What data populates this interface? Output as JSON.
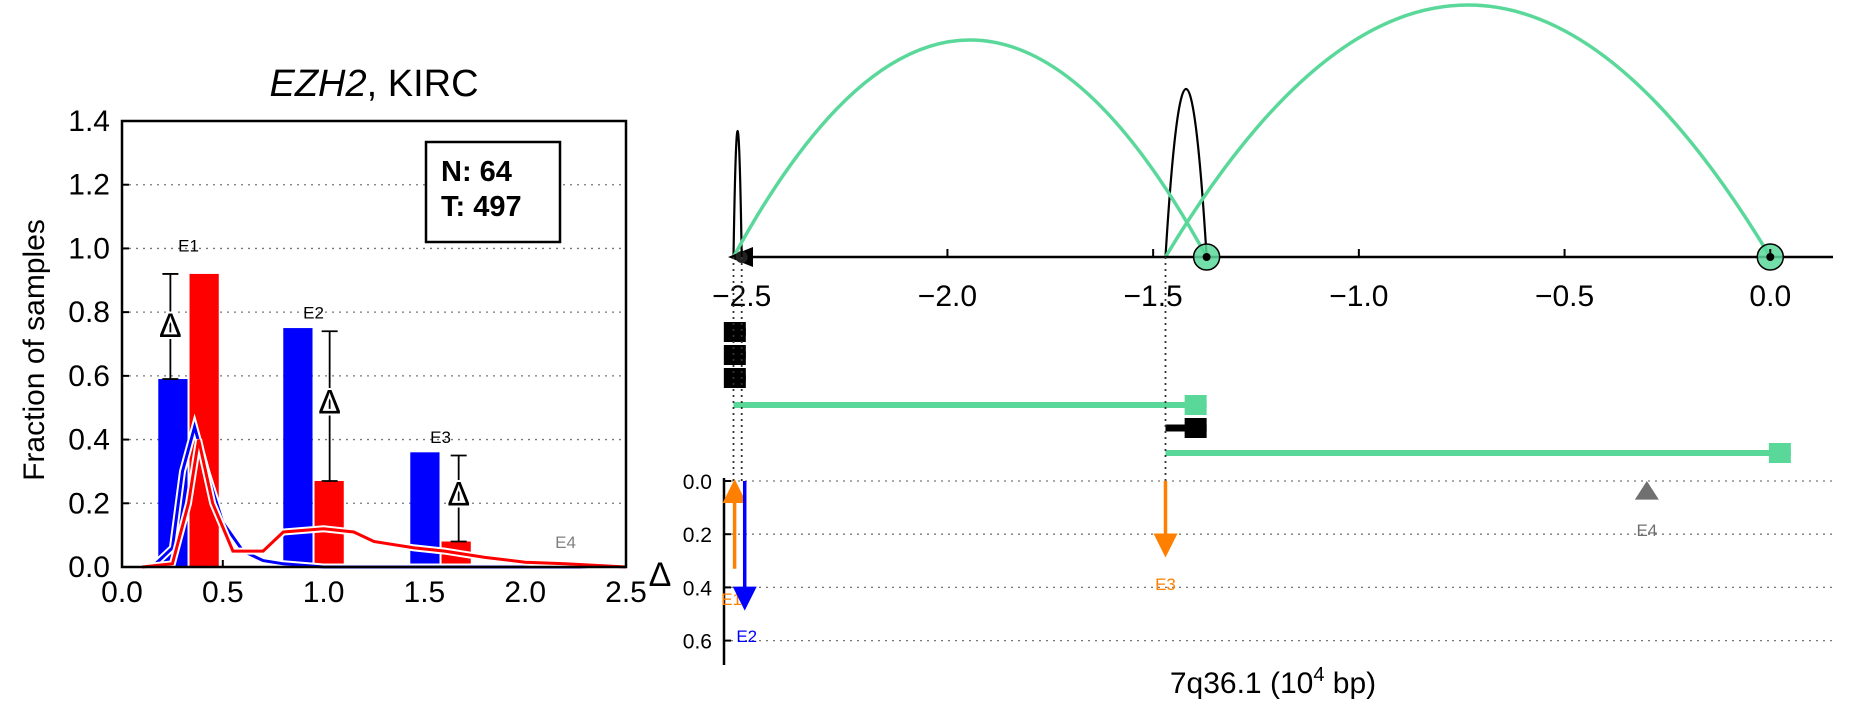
{
  "chart_data": [
    {
      "type": "bar",
      "title_gene": "EZH2",
      "title_rest": ", KIRC",
      "ylabel": "Fraction of samples",
      "xlim": [
        0,
        2.5
      ],
      "ylim": [
        0,
        1.4
      ],
      "xticks": [
        "0.0",
        "0.5",
        "1.0",
        "1.5",
        "2.0",
        "2.5"
      ],
      "yticks": [
        "0.0",
        "0.2",
        "0.4",
        "0.6",
        "0.8",
        "1.0",
        "1.2",
        "1.4"
      ],
      "legend": {
        "n": "N: 64",
        "t": "T: 497",
        "position": "top-right"
      },
      "delta_symbol": "Δ",
      "categories": [
        "E1",
        "E2",
        "E3",
        "E4"
      ],
      "series": [
        {
          "name": "N",
          "color": "#0000ff",
          "values": [
            0.59,
            0.75,
            0.36,
            0.0
          ]
        },
        {
          "name": "T",
          "color": "#ff0000",
          "values": [
            0.92,
            0.27,
            0.08,
            0.01
          ]
        }
      ],
      "delta": [
        {
          "label": "E1",
          "y": 0.76,
          "err": [
            0.59,
            0.92
          ]
        },
        {
          "label": "E2",
          "y": 0.52,
          "err": [
            0.27,
            0.74
          ]
        },
        {
          "label": "E3",
          "y": 0.23,
          "err": [
            0.08,
            0.35
          ]
        }
      ],
      "density_curves": [
        {
          "color": "#0000ff",
          "points": [
            [
              0.15,
              0
            ],
            [
              0.25,
              0.06
            ],
            [
              0.3,
              0.3
            ],
            [
              0.36,
              0.44
            ],
            [
              0.42,
              0.3
            ],
            [
              0.5,
              0.14
            ],
            [
              0.6,
              0.05
            ],
            [
              0.7,
              0.02
            ],
            [
              0.8,
              0.01
            ],
            [
              1.0,
              0.0
            ],
            [
              1.5,
              0.0
            ],
            [
              2.5,
              0.0
            ]
          ]
        },
        {
          "color": "#ff0000",
          "points": [
            [
              0.1,
              0
            ],
            [
              0.25,
              0.01
            ],
            [
              0.33,
              0.2
            ],
            [
              0.38,
              0.4
            ],
            [
              0.45,
              0.2
            ],
            [
              0.55,
              0.05
            ],
            [
              0.7,
              0.05
            ],
            [
              0.8,
              0.11
            ],
            [
              1.0,
              0.12
            ],
            [
              1.15,
              0.11
            ],
            [
              1.25,
              0.08
            ],
            [
              1.45,
              0.06
            ],
            [
              1.6,
              0.05
            ],
            [
              1.8,
              0.03
            ],
            [
              2.0,
              0.015
            ],
            [
              2.2,
              0.01
            ],
            [
              2.5,
              0.0
            ]
          ]
        }
      ]
    },
    {
      "type": "scatter",
      "xlabel": "7q36.1 (10",
      "xlabel_sup": "4",
      "xlabel_end": " bp)",
      "xlim": [
        -2.65,
        0.15
      ],
      "xticks": [
        "−2.5",
        "−2.0",
        "−1.5",
        "−1.0",
        "−0.5",
        "0.0"
      ],
      "ylabel": "Δ",
      "ylim": [
        0.0,
        0.7
      ],
      "yticks": [
        "0.0",
        "0.2",
        "0.4",
        "0.6"
      ],
      "arcs": [
        {
          "x1": -2.52,
          "x2": -2.5,
          "height": 0.9,
          "color": "#000000"
        },
        {
          "x1": -1.47,
          "x2": -1.37,
          "height": 1.2,
          "color": "#000000"
        },
        {
          "x1": -2.52,
          "x2": -1.37,
          "height": 1.55,
          "color": "#5ad89a"
        },
        {
          "x1": -1.47,
          "x2": 0.0,
          "height": 1.8,
          "color": "#5ad89a"
        }
      ],
      "nodes": [
        {
          "x": -2.5,
          "color": "#000000"
        },
        {
          "x": -1.37,
          "color": "#5ad89a"
        },
        {
          "x": 0.0,
          "color": "#5ad89a"
        }
      ],
      "transcripts": [
        {
          "start": -2.52,
          "end": -2.49,
          "color": "#000000"
        },
        {
          "start": -2.52,
          "end": -2.49,
          "color": "#000000"
        },
        {
          "start": -2.51,
          "end": -2.49,
          "color": "#000000"
        },
        {
          "start": -2.52,
          "end": -1.37,
          "color": "#5ad89a"
        },
        {
          "start": -1.47,
          "end": -1.37,
          "color": "#000000"
        },
        {
          "start": -1.47,
          "end": 0.05,
          "color": "#5ad89a"
        }
      ],
      "events": [
        {
          "label": "E1",
          "x": -2.51,
          "delta": -0.33,
          "color": "#ff8000"
        },
        {
          "label": "E2",
          "x": -2.5,
          "delta": 0.48,
          "color": "#0000ff"
        },
        {
          "label": "E3",
          "x": -1.47,
          "delta": 0.28,
          "color": "#ff8000"
        },
        {
          "label": "E4",
          "x": -0.3,
          "delta": -0.03,
          "color": "#707070"
        }
      ]
    }
  ]
}
